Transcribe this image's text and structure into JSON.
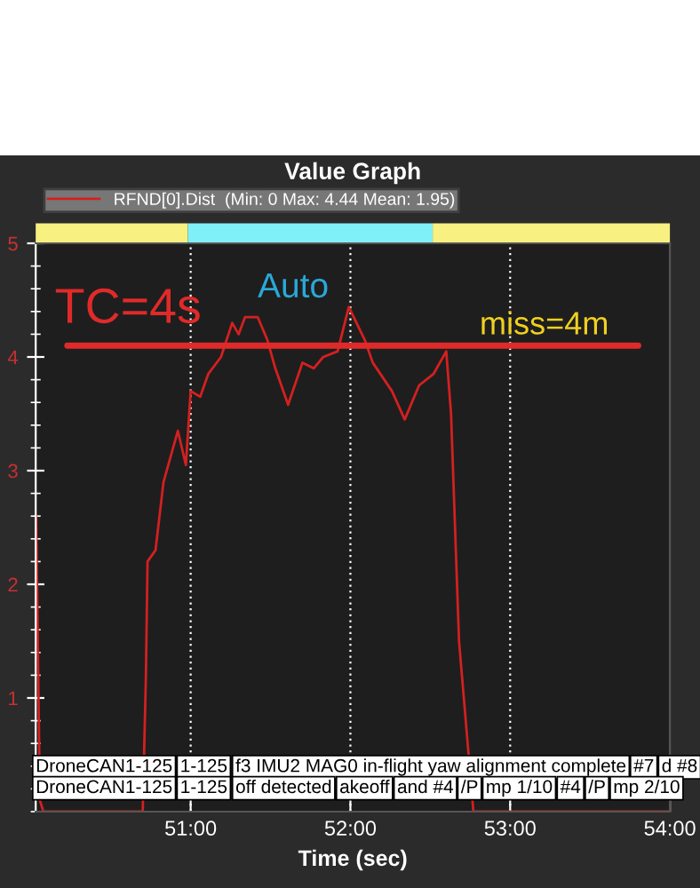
{
  "chart_data": {
    "type": "line",
    "title": "Value Graph",
    "xlabel": "Time (sec)",
    "series": [
      {
        "name": "RFND[0].Dist  (Min: 0 Max: 4.44 Mean: 1.95)",
        "color": "#d42020",
        "x": [
          50.033,
          50.056,
          50.078,
          50.7,
          50.72,
          50.73,
          50.78,
          50.83,
          50.92,
          50.97,
          51.0,
          51.06,
          51.11,
          51.19,
          51.26,
          51.3,
          51.34,
          51.42,
          51.48,
          51.53,
          51.61,
          51.7,
          51.77,
          51.83,
          51.92,
          51.99,
          52.09,
          52.14,
          52.26,
          52.34,
          52.43,
          52.52,
          52.6,
          52.63,
          52.68,
          52.77,
          54.0
        ],
        "values": [
          2.6,
          0.1,
          0,
          0,
          1.2,
          2.2,
          2.3,
          2.9,
          3.35,
          3.05,
          3.7,
          3.65,
          3.85,
          4.0,
          4.3,
          4.2,
          4.35,
          4.35,
          4.15,
          3.9,
          3.58,
          3.95,
          3.9,
          4.0,
          4.05,
          4.44,
          4.15,
          3.95,
          3.7,
          3.45,
          3.75,
          3.85,
          4.05,
          3.5,
          1.5,
          0,
          0
        ]
      }
    ],
    "xlim": [
      50.03,
      54.0
    ],
    "xticks": [
      {
        "value": 51,
        "label": "51:00"
      },
      {
        "value": 52,
        "label": "52:00"
      },
      {
        "value": 53,
        "label": "53:00"
      },
      {
        "value": 54,
        "label": "54:00"
      }
    ],
    "ylim": [
      0,
      5
    ],
    "yticks": [
      1,
      2,
      3,
      4,
      5
    ],
    "grid": "x",
    "legend": "top left",
    "line_style": "solid",
    "marker": "none",
    "ref_lines": [
      {
        "axis": "y",
        "value": 4.1,
        "color": "#e02a2a"
      }
    ],
    "annotations": [
      "TC=4s",
      "Auto",
      "miss=4m",
      "DroneCAN1-125",
      "1-125",
      "f3 IMU2 MAG0 in-flight yaw alignment complete",
      "#7",
      "d #8",
      "DroneCAN1-125",
      "1-125",
      "off detected",
      "akeoff",
      "and #4",
      "/P",
      "mp 1/10",
      "#4",
      "/P",
      "mp 2/10"
    ]
  }
}
